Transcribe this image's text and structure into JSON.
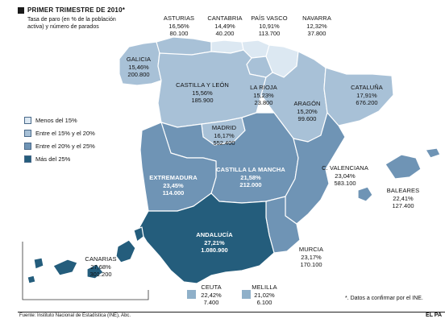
{
  "header": {
    "title": "PRIMER TRIMESTRE DE 2010*",
    "subtitle": "Tasa de paro (en % de la población activa) y número de parados"
  },
  "colors": {
    "c1": "#dce8f2",
    "c2": "#a8c1d7",
    "c3": "#6f94b5",
    "c4": "#245d7c",
    "border": "#ffffff",
    "land_outside": "#ffffff"
  },
  "legend": [
    {
      "label": "Menos del 15%",
      "color": "#dce8f2"
    },
    {
      "label": "Entre el 15% y el 20%",
      "color": "#a8c1d7"
    },
    {
      "label": "Entre el 20% y el 25%",
      "color": "#6f94b5"
    },
    {
      "label": "Más del 25%",
      "color": "#245d7c"
    }
  ],
  "regions": [
    {
      "key": "asturias",
      "name": "ASTURIAS",
      "rate": "16,56%",
      "unemployed": "80.100"
    },
    {
      "key": "cantabria",
      "name": "CANTABRIA",
      "rate": "14,49%",
      "unemployed": "40.200"
    },
    {
      "key": "paisvasco",
      "name": "PAÍS VASCO",
      "rate": "10,91%",
      "unemployed": "113.700"
    },
    {
      "key": "navarra",
      "name": "NAVARRA",
      "rate": "12,32%",
      "unemployed": "37.800"
    },
    {
      "key": "galicia",
      "name": "GALICIA",
      "rate": "15,46%",
      "unemployed": "200.800"
    },
    {
      "key": "castillaleon",
      "name": "CASTILLA Y LEÓN",
      "rate": "15,56%",
      "unemployed": "185.900"
    },
    {
      "key": "larioja",
      "name": "LA RIOJA",
      "rate": "15,23%",
      "unemployed": "23.800"
    },
    {
      "key": "aragon",
      "name": "ARAGÓN",
      "rate": "15,20%",
      "unemployed": "99.600"
    },
    {
      "key": "cataluna",
      "name": "CATALUÑA",
      "rate": "17,91%",
      "unemployed": "676.200"
    },
    {
      "key": "madrid",
      "name": "MADRID",
      "rate": "16,17%",
      "unemployed": "552.400"
    },
    {
      "key": "extremadura",
      "name": "EXTREMADURA",
      "rate": "23,45%",
      "unemployed": "114.000"
    },
    {
      "key": "castillamancha",
      "name": "CASTILLA LA MANCHA",
      "rate": "21,58%",
      "unemployed": "212.000"
    },
    {
      "key": "valenciana",
      "name": "C. VALENCIANA",
      "rate": "23,04%",
      "unemployed": "583.100"
    },
    {
      "key": "baleares",
      "name": "BALEARES",
      "rate": "22,41%",
      "unemployed": "127.400"
    },
    {
      "key": "andalucia",
      "name": "ANDALUCÍA",
      "rate": "27,21%",
      "unemployed": "1.080.900"
    },
    {
      "key": "murcia",
      "name": "MURCIA",
      "rate": "23,17%",
      "unemployed": "170.100"
    },
    {
      "key": "canarias",
      "name": "CANARIAS",
      "rate": "27,68%",
      "unemployed": "301.200"
    },
    {
      "key": "ceuta",
      "name": "CEUTA",
      "rate": "22,42%",
      "unemployed": "7.400"
    },
    {
      "key": "melilla",
      "name": "MELILLA",
      "rate": "21,02%",
      "unemployed": "6.100"
    }
  ],
  "note": "*. Datos a confirmar por el INE.",
  "footer": {
    "source": "Fuente: Instituto Nacional de Estadística (INE), Abc.",
    "brand": "EL PA"
  }
}
